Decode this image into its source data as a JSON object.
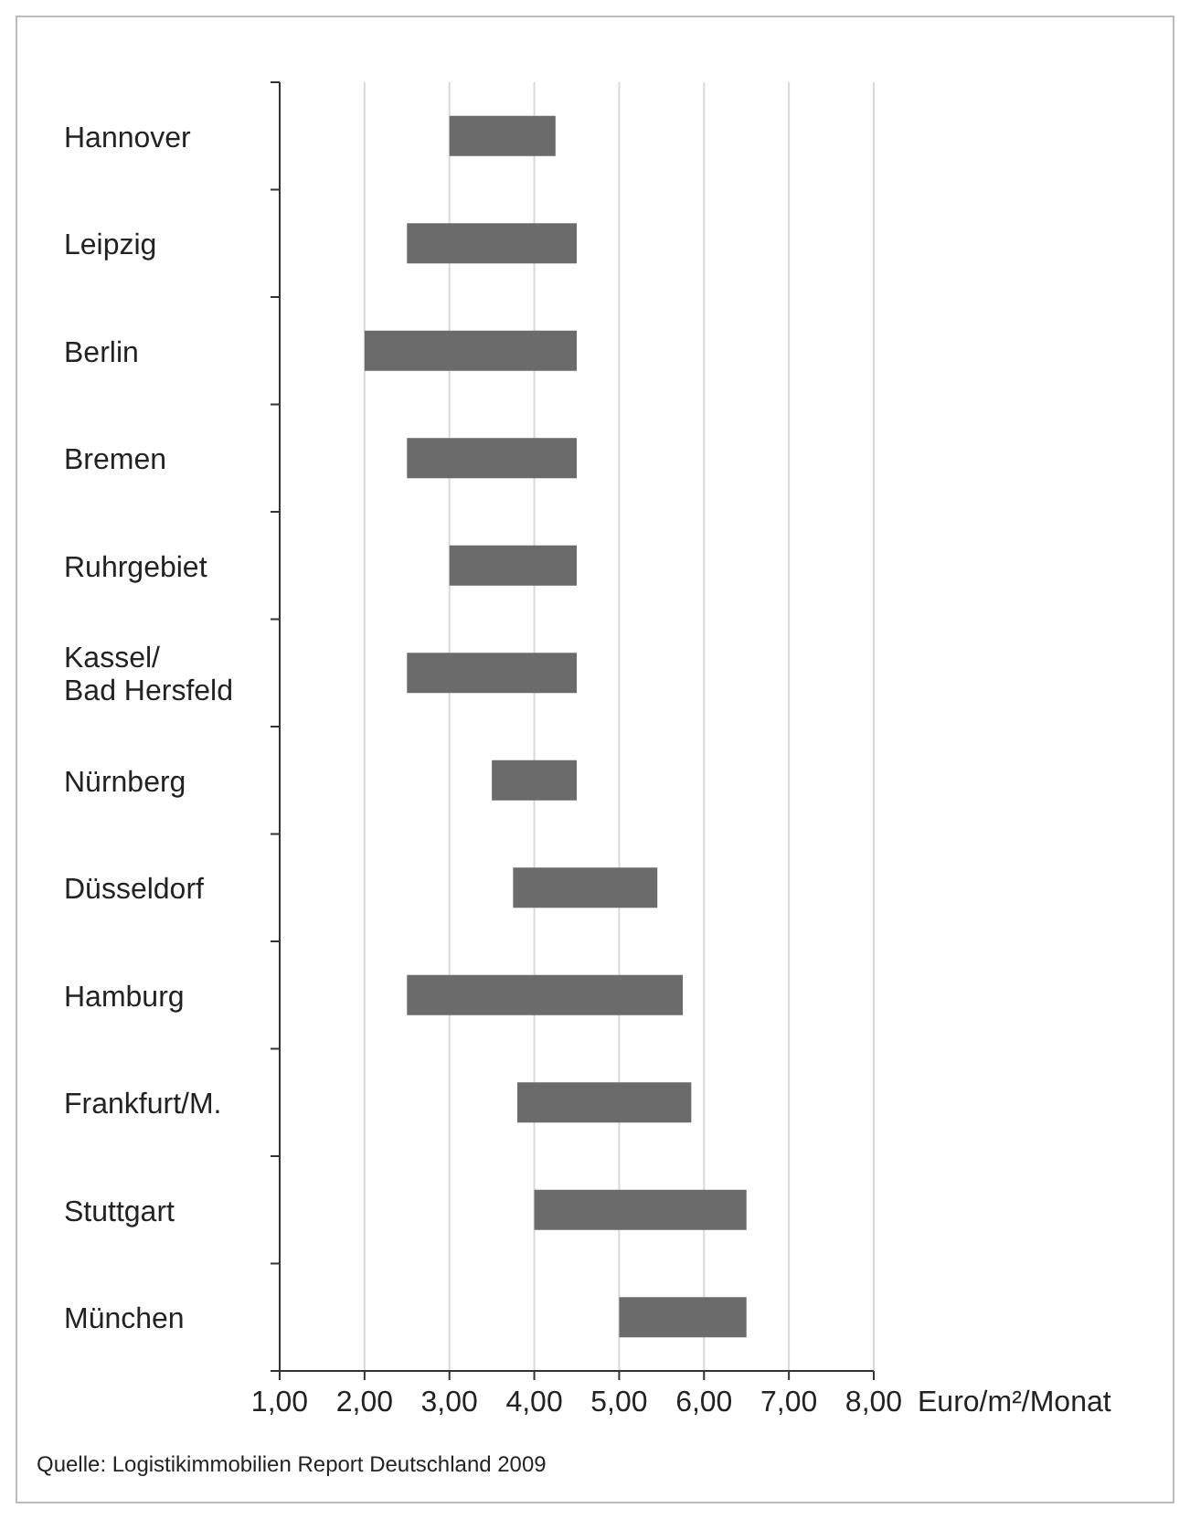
{
  "chart_data": {
    "type": "bar",
    "orientation": "horizontal",
    "xlabel": "Euro/m²/Monat",
    "categories": [
      "Hannover",
      "Leipzig",
      "Berlin",
      "Bremen",
      "Ruhrgebiet",
      "Kassel/\nBad Hersfeld",
      "Nürnberg",
      "Düsseldorf",
      "Hamburg",
      "Frankfurt/M.",
      "Stuttgart",
      "München"
    ],
    "base": [
      3,
      2.5,
      2,
      2.5,
      3,
      2.5,
      3.5,
      3.75,
      2.5,
      3.8,
      4,
      5
    ],
    "values": [
      1.25,
      2,
      2.5,
      2,
      1.5,
      2,
      1,
      1.7,
      3.25,
      2.05,
      2.5,
      1.5
    ],
    "color": "#6b6b6b",
    "xlim": [
      1,
      8
    ],
    "xticks": [
      {
        "value": 1,
        "label": "1,00"
      },
      {
        "value": 2,
        "label": "2,00"
      },
      {
        "value": 3,
        "label": "3,00"
      },
      {
        "value": 4,
        "label": "4,00"
      },
      {
        "value": 5,
        "label": "5,00"
      },
      {
        "value": 6,
        "label": "6,00"
      },
      {
        "value": 7,
        "label": "7,00"
      },
      {
        "value": 8,
        "label": "8,00"
      }
    ],
    "grid": "x",
    "annotations": [
      "Quelle: Logistikimmobilien Report Deutschland 2009"
    ]
  }
}
